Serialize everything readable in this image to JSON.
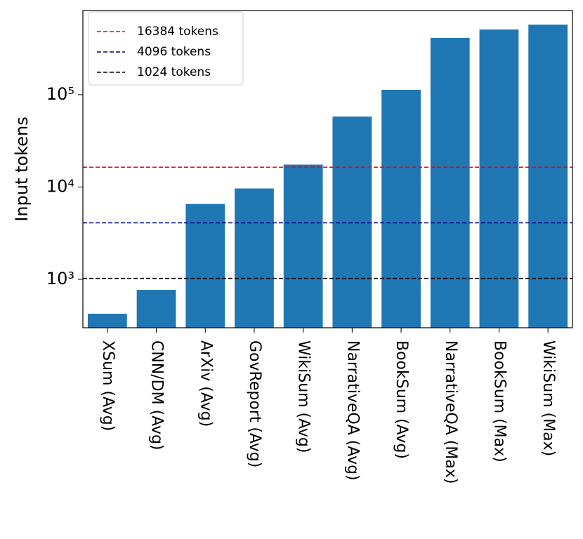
{
  "chart_data": {
    "type": "bar",
    "ylabel": "Input tokens",
    "categories": [
      "XSum (Avg)",
      "CNN/DM (Avg)",
      "ArXiv (Avg)",
      "GovReport (Avg)",
      "WikiSum (Avg)",
      "NarrativeQA (Avg)",
      "BookSum (Avg)",
      "NarrativeQA (Max)",
      "BookSum (Max)",
      "WikiSum (Max)"
    ],
    "values": [
      424,
      769,
      6560,
      9650,
      17500,
      58000,
      113000,
      413000,
      509000,
      575000
    ],
    "color": "#1f77b4",
    "log_scale": true,
    "ylim": [
      299,
      817000
    ],
    "yticks": [
      {
        "value": 1000,
        "label": "10³"
      },
      {
        "value": 10000,
        "label": "10⁴"
      },
      {
        "value": 100000,
        "label": "10⁵"
      }
    ],
    "hlines": [
      {
        "value": 16384,
        "label": "16384 tokens",
        "color": "red"
      },
      {
        "value": 4096,
        "label": "4096 tokens",
        "color": "darkblue"
      },
      {
        "value": 1024,
        "label": "1024 tokens",
        "color": "black"
      }
    ],
    "legend": "upper left"
  }
}
